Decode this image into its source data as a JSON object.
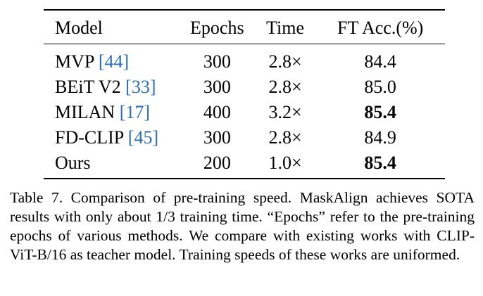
{
  "table": {
    "headers": [
      "Model",
      "Epochs",
      "Time",
      "FT Acc.(%)"
    ],
    "rows": [
      {
        "model": "MVP",
        "cite": "[44]",
        "epochs": "300",
        "time": "2.8×",
        "acc": "84.4",
        "bold": false
      },
      {
        "model": "BEiT V2",
        "cite": "[33]",
        "epochs": "300",
        "time": "2.8×",
        "acc": "85.0",
        "bold": false
      },
      {
        "model": "MILAN",
        "cite": "[17]",
        "epochs": "400",
        "time": "3.2×",
        "acc": "85.4",
        "bold": true
      },
      {
        "model": "FD-CLIP",
        "cite": "[45]",
        "epochs": "300",
        "time": "2.8×",
        "acc": "84.9",
        "bold": false
      },
      {
        "model": "Ours",
        "cite": "",
        "epochs": "200",
        "time": "1.0×",
        "acc": "85.4",
        "bold": true
      }
    ]
  },
  "caption": {
    "text": "Table 7. Comparison of pre-training speed. MaskAlign achieves SOTA results with only about 1/3 training time. “Epochs” refer to the pre-training epochs of various methods. We compare with existing works with CLIP-ViT-B/16 as teacher model. Training speeds of these works are uniformed."
  },
  "colors": {
    "citation": "#2a6eb8",
    "text": "#000000"
  }
}
